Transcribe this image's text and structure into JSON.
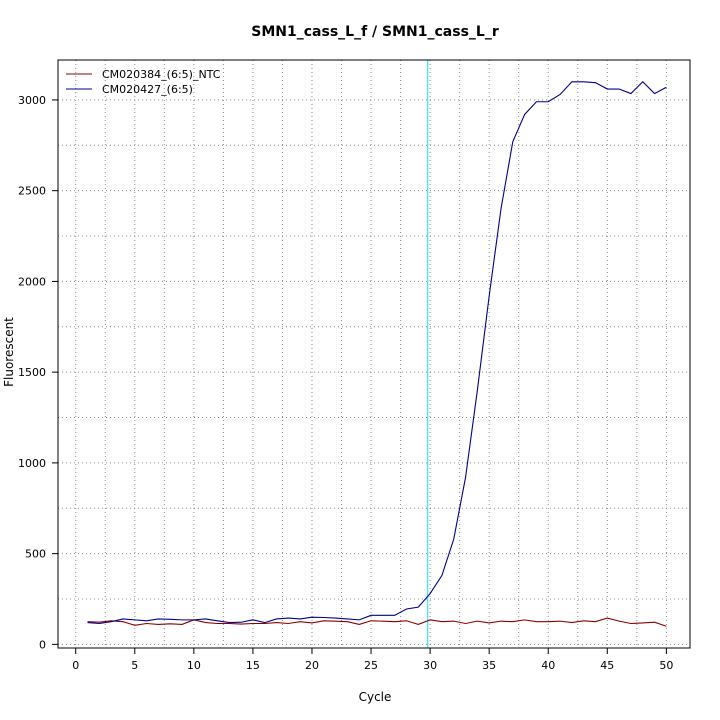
{
  "chart_data": {
    "type": "line",
    "title": "SMN1_cass_L_f / SMN1_cass_L_r",
    "xlabel": "Cycle",
    "ylabel": "Fluorescent",
    "xlim": [
      -1.5,
      52
    ],
    "ylim": [
      -20,
      3220
    ],
    "x_ticks": [
      0,
      5,
      10,
      15,
      20,
      25,
      30,
      35,
      40,
      45,
      50
    ],
    "x_tick_labels": [
      "0",
      "5",
      "10",
      "15",
      "20",
      "25",
      "30",
      "35",
      "40",
      "45",
      "50"
    ],
    "y_ticks": [
      0,
      500,
      1000,
      1500,
      2000,
      2500,
      3000
    ],
    "y_tick_labels": [
      "0",
      "500",
      "1000",
      "1500",
      "2000",
      "2500",
      "3000"
    ],
    "grid": true,
    "legend_position": "top-left",
    "threshold_cycle": 29.8,
    "threshold_color": "#00e5ee",
    "x": [
      1,
      2,
      3,
      4,
      5,
      6,
      7,
      8,
      9,
      10,
      11,
      12,
      13,
      14,
      15,
      16,
      17,
      18,
      19,
      20,
      21,
      22,
      23,
      24,
      25,
      26,
      27,
      28,
      29,
      30,
      31,
      32,
      33,
      34,
      35,
      36,
      37,
      38,
      39,
      40,
      41,
      42,
      43,
      44,
      45,
      46,
      47,
      48,
      49,
      50
    ],
    "series": [
      {
        "name": "CM020384_(6:5)_NTC",
        "color": "#8b0000",
        "values": [
          125,
          122,
          130,
          125,
          105,
          115,
          110,
          113,
          110,
          135,
          120,
          115,
          115,
          112,
          115,
          115,
          120,
          115,
          125,
          118,
          130,
          128,
          125,
          110,
          130,
          128,
          125,
          130,
          110,
          135,
          125,
          128,
          115,
          128,
          118,
          128,
          125,
          135,
          125,
          125,
          128,
          120,
          130,
          125,
          145,
          128,
          115,
          118,
          122,
          100
        ]
      },
      {
        "name": "CM020427_(6:5)",
        "color": "#00008b",
        "values": [
          120,
          115,
          125,
          140,
          135,
          130,
          140,
          138,
          135,
          135,
          140,
          130,
          120,
          122,
          135,
          120,
          140,
          145,
          140,
          150,
          148,
          145,
          140,
          135,
          160,
          160,
          160,
          195,
          205,
          280,
          380,
          580,
          920,
          1400,
          1920,
          2400,
          2770,
          2920,
          2990,
          2990,
          3030,
          3100,
          3100,
          3095,
          3060,
          3060,
          3035,
          3100,
          3035,
          3070
        ]
      }
    ]
  }
}
